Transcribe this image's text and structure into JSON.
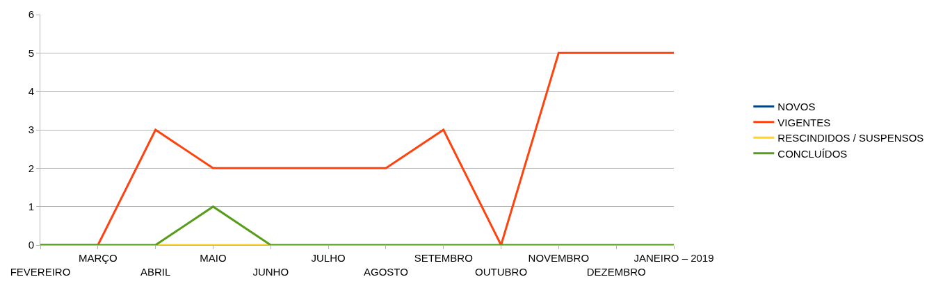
{
  "chart_data": {
    "type": "line",
    "categories": [
      "FEVEREIRO",
      "MARÇO",
      "ABRIL",
      "MAIO",
      "JUNHO",
      "JULHO",
      "AGOSTO",
      "SETEMBRO",
      "OUTUBRO",
      "NOVEMBRO",
      "DEZEMBRO",
      "JANEIRO – 2019"
    ],
    "series": [
      {
        "name": "NOVOS",
        "color": "#004586",
        "values": [
          null,
          null,
          null,
          null,
          null,
          null,
          null,
          null,
          null,
          null,
          null,
          null
        ]
      },
      {
        "name": "VIGENTES",
        "color": "#ff420e",
        "values": [
          0,
          0,
          3,
          2,
          2,
          2,
          2,
          3,
          0,
          5,
          5,
          5
        ]
      },
      {
        "name": "RESCINDIDOS / SUSPENSOS",
        "color": "#ffd320",
        "values": [
          null,
          null,
          0,
          0,
          0,
          null,
          null,
          null,
          null,
          null,
          null,
          null
        ]
      },
      {
        "name": "CONCLUÍDOS",
        "color": "#579d1c",
        "values": [
          0,
          0,
          0,
          1,
          0,
          0,
          0,
          0,
          0,
          0,
          0,
          0
        ]
      }
    ],
    "ylim": [
      0,
      6
    ],
    "yticks": [
      0,
      1,
      2,
      3,
      4,
      5,
      6
    ],
    "grid": "y",
    "legend": "right",
    "marker": "none",
    "line_style": "solid"
  }
}
